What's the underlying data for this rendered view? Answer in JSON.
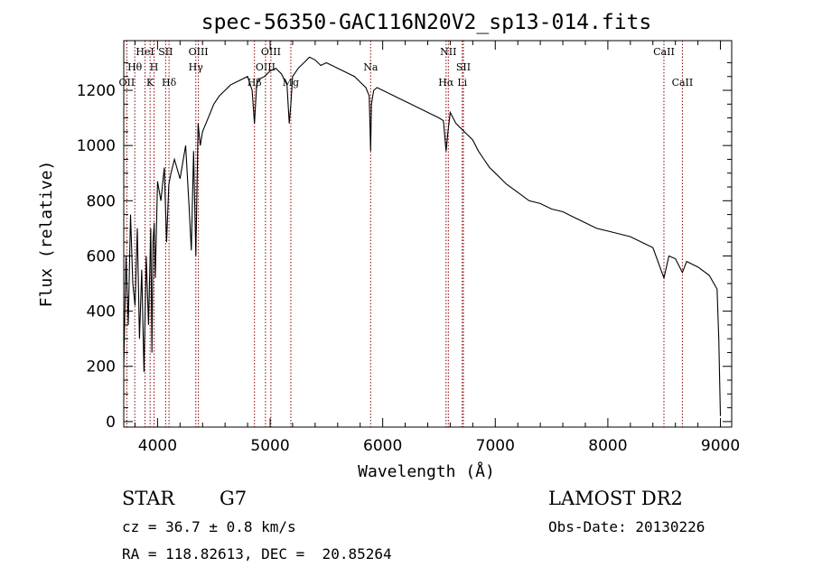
{
  "chart_data": {
    "type": "line",
    "title": "spec-56350-GAC116N20V2_sp13-014.fits",
    "xlabel": "Wavelength (Å)",
    "ylabel": "Flux (relative)",
    "xlim": [
      3700,
      9100
    ],
    "ylim": [
      -20,
      1380
    ],
    "xticks": [
      4000,
      5000,
      6000,
      7000,
      8000,
      9000
    ],
    "yticks": [
      0,
      200,
      400,
      600,
      800,
      1000,
      1200
    ],
    "grid": false,
    "line_color": "#000000",
    "marker_color": "#8b0000",
    "series": [
      {
        "x": [
          3700,
          3720,
          3740,
          3760,
          3780,
          3800,
          3820,
          3840,
          3860,
          3880,
          3900,
          3920,
          3940,
          3950,
          3960,
          3970,
          3980,
          4000,
          4030,
          4060,
          4080,
          4100,
          4120,
          4150,
          4200,
          4250,
          4280,
          4300,
          4320,
          4340,
          4360,
          4380,
          4400,
          4450,
          4500,
          4550,
          4600,
          4650,
          4700,
          4750,
          4800,
          4840,
          4861,
          4880,
          4900,
          4950,
          5000,
          5050,
          5100,
          5150,
          5170,
          5184,
          5200,
          5250,
          5300,
          5350,
          5400,
          5450,
          5500,
          5550,
          5600,
          5650,
          5700,
          5750,
          5800,
          5850,
          5880,
          5893,
          5900,
          5920,
          5950,
          6000,
          6050,
          6100,
          6150,
          6200,
          6250,
          6300,
          6350,
          6400,
          6450,
          6500,
          6540,
          6563,
          6580,
          6600,
          6650,
          6700,
          6750,
          6800,
          6850,
          6900,
          6950,
          7000,
          7100,
          7200,
          7300,
          7400,
          7500,
          7600,
          7700,
          7800,
          7900,
          8000,
          8100,
          8200,
          8300,
          8400,
          8498,
          8542,
          8600,
          8662,
          8700,
          8800,
          8900,
          8970,
          8985,
          9000
        ],
        "y": [
          200,
          600,
          350,
          750,
          500,
          420,
          700,
          300,
          550,
          180,
          600,
          350,
          700,
          250,
          650,
          720,
          520,
          870,
          800,
          920,
          650,
          860,
          900,
          950,
          880,
          1000,
          780,
          620,
          980,
          600,
          1080,
          1000,
          1050,
          1100,
          1150,
          1180,
          1200,
          1220,
          1230,
          1240,
          1250,
          1200,
          1080,
          1220,
          1240,
          1250,
          1270,
          1280,
          1260,
          1220,
          1080,
          1150,
          1250,
          1280,
          1300,
          1320,
          1310,
          1290,
          1300,
          1290,
          1280,
          1270,
          1260,
          1250,
          1230,
          1210,
          1180,
          980,
          1150,
          1200,
          1210,
          1200,
          1190,
          1180,
          1170,
          1160,
          1150,
          1140,
          1130,
          1120,
          1110,
          1100,
          1090,
          980,
          1050,
          1120,
          1080,
          1060,
          1040,
          1020,
          980,
          950,
          920,
          900,
          860,
          830,
          800,
          790,
          770,
          760,
          740,
          720,
          700,
          690,
          680,
          670,
          650,
          630,
          520,
          600,
          590,
          540,
          580,
          560,
          530,
          480,
          300,
          20
        ]
      }
    ],
    "lines": [
      {
        "x": 3727,
        "label": "OII",
        "row": 3
      },
      {
        "x": 3798,
        "label": "Hθ",
        "row": 2
      },
      {
        "x": 3889,
        "label": "HeI",
        "row": 1
      },
      {
        "x": 3934,
        "label": "K",
        "row": 3
      },
      {
        "x": 3969,
        "label": "H",
        "row": 2
      },
      {
        "x": 4072,
        "label": "SII",
        "row": 1
      },
      {
        "x": 4102,
        "label": "Hδ",
        "row": 3
      },
      {
        "x": 4340,
        "label": "Hγ",
        "row": 2
      },
      {
        "x": 4363,
        "label": "OIII",
        "row": 1
      },
      {
        "x": 4861,
        "label": "Hβ",
        "row": 3
      },
      {
        "x": 4959,
        "label": "OIII",
        "row": 2
      },
      {
        "x": 5007,
        "label": "OIII",
        "row": 1
      },
      {
        "x": 5184,
        "label": "Mg",
        "row": 3
      },
      {
        "x": 5893,
        "label": "Na",
        "row": 2
      },
      {
        "x": 6563,
        "label": "Hα",
        "row": 3
      },
      {
        "x": 6583,
        "label": "NII",
        "row": 1
      },
      {
        "x": 6707,
        "label": "Li",
        "row": 3
      },
      {
        "x": 6717,
        "label": "SII",
        "row": 2
      },
      {
        "x": 8498,
        "label": "CaII",
        "row": 1
      },
      {
        "x": 8662,
        "label": "CaII",
        "row": 3
      }
    ]
  },
  "info": {
    "class": "STAR",
    "subclass": "G7",
    "release": "LAMOST DR2",
    "cz": "cz = 36.7 ± 0.8 km/s",
    "obs_date": "Obs-Date: 20130226",
    "coords": "RA = 118.82613, DEC =  20.85264"
  }
}
